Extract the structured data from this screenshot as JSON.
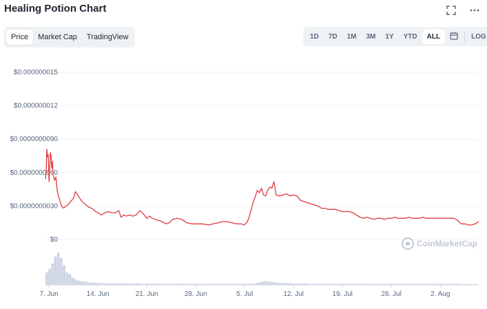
{
  "header": {
    "title": "Healing Potion Chart"
  },
  "icons": {
    "fullscreen": "fullscreen-icon",
    "more": "more-icon",
    "calendar": "calendar-icon"
  },
  "tabs": [
    {
      "label": "Price",
      "active": true
    },
    {
      "label": "Market Cap",
      "active": false
    },
    {
      "label": "TradingView",
      "active": false
    }
  ],
  "ranges": [
    {
      "label": "1D",
      "active": false
    },
    {
      "label": "7D",
      "active": false
    },
    {
      "label": "1M",
      "active": false
    },
    {
      "label": "3M",
      "active": false
    },
    {
      "label": "1Y",
      "active": false
    },
    {
      "label": "YTD",
      "active": false
    },
    {
      "label": "ALL",
      "active": true
    }
  ],
  "log_label": "LOG",
  "watermark": "CoinMarketCap",
  "colors": {
    "line": "#e03a3e",
    "volume": "#cfd6e4",
    "grid": "#eff2f5"
  },
  "chart_data": {
    "type": "line",
    "ytick_labels": [
      "$0",
      "$0.0000000030",
      "$0.0000000060",
      "$0.0000000090",
      "$0.000000012",
      "$0.000000015"
    ],
    "yticks": [
      0,
      3e-09,
      6e-09,
      9e-09,
      1.2e-08,
      1.5e-08
    ],
    "ylim": [
      0,
      1.5e-08
    ],
    "xtick_labels": [
      "7. Jun",
      "14. Jun",
      "21. Jun",
      "28. Jun",
      "5. Jul",
      "12. Jul",
      "19. Jul",
      "26. Jul",
      "2. Aug"
    ],
    "xticks": [
      7.5,
      14.5,
      21.5,
      28.5,
      35.5,
      42.5,
      49.5,
      56.5,
      63.5
    ],
    "xlim": [
      7,
      69
    ],
    "grid": true,
    "series": [
      {
        "x": [
          7.0,
          7.1,
          7.2,
          7.3,
          7.4,
          7.5,
          7.6,
          7.7,
          7.8,
          7.9,
          8.0,
          8.1,
          8.3,
          8.5,
          8.7,
          9.0,
          9.3,
          9.6,
          9.9,
          10.2,
          10.6,
          11.0,
          11.3,
          11.6,
          12.0,
          12.4,
          12.8,
          13.2,
          13.6,
          14.0,
          14.5,
          15.0,
          15.5,
          16.0,
          16.5,
          17.0,
          17.5,
          17.8,
          18.2,
          18.6,
          19.0,
          19.5,
          20.0,
          20.5,
          21.0,
          21.5,
          21.9,
          22.3,
          22.7,
          23.2,
          23.7,
          24.2,
          24.7,
          25.2,
          25.8,
          26.5,
          27.2,
          28.0,
          28.7,
          29.5,
          30.3,
          31.0,
          31.7,
          32.3,
          33.0,
          33.7,
          34.3,
          35.0,
          35.4,
          35.8,
          36.1,
          36.4,
          36.7,
          37.0,
          37.3,
          37.6,
          37.9,
          38.2,
          38.5,
          38.8,
          39.1,
          39.4,
          39.7,
          40.0,
          40.5,
          41.0,
          41.5,
          42.0,
          42.5,
          43.0,
          43.5,
          44.0,
          44.5,
          45.0,
          45.5,
          46.0,
          46.5,
          47.0,
          47.5,
          48.0,
          48.5,
          49.0,
          49.5,
          50.0,
          50.5,
          51.0,
          51.5,
          52.0,
          52.5,
          53.0,
          53.5,
          54.0,
          54.5,
          55.0,
          55.5,
          56.0,
          56.5,
          57.0,
          57.5,
          58.0,
          58.5,
          59.0,
          59.5,
          60.0,
          60.5,
          61.0,
          61.5,
          62.0,
          62.5,
          63.0,
          63.5,
          64.0,
          64.5,
          65.0,
          65.5,
          66.0,
          66.5,
          67.0,
          67.5,
          68.0,
          68.5,
          69.0
        ],
        "y": [
          5.4e-09,
          6.1e-09,
          8.1e-09,
          7.4e-09,
          7.6e-09,
          5.2e-09,
          6.3e-09,
          7.8e-09,
          7.5e-09,
          6.4e-09,
          7e-09,
          5.8e-09,
          5.3e-09,
          5.6e-09,
          4.3e-09,
          3.6e-09,
          3e-09,
          2.8e-09,
          3e-09,
          3.1e-09,
          3.4e-09,
          3.7e-09,
          4.3e-09,
          4e-09,
          3.6e-09,
          3.3e-09,
          3.1e-09,
          2.9e-09,
          2.8e-09,
          2.6e-09,
          2.4e-09,
          2.2e-09,
          2.4e-09,
          2.5e-09,
          2.4e-09,
          2.4e-09,
          2.6e-09,
          2e-09,
          2.2e-09,
          2.1e-09,
          2.2e-09,
          2.1e-09,
          2.2e-09,
          2.6e-09,
          2.3e-09,
          1.9e-09,
          2.1e-09,
          1.9e-09,
          1.8e-09,
          1.7e-09,
          1.6e-09,
          1.4e-09,
          1.5e-09,
          1.8e-09,
          1.9e-09,
          1.8e-09,
          1.5e-09,
          1.4e-09,
          1.4e-09,
          1.4e-09,
          1.3e-09,
          1.4e-09,
          1.5e-09,
          1.6e-09,
          1.6e-09,
          1.5e-09,
          1.4e-09,
          1.4e-09,
          1.3e-09,
          1.5e-09,
          1.9e-09,
          2.6e-09,
          3.3e-09,
          3.8e-09,
          4.4e-09,
          4.2e-09,
          4.6e-09,
          4e-09,
          3.9e-09,
          4.4e-09,
          4.7e-09,
          4.6e-09,
          5.2e-09,
          4e-09,
          3.9e-09,
          4e-09,
          4.1e-09,
          3.9e-09,
          4e-09,
          3.9e-09,
          3.5e-09,
          3.4e-09,
          3.3e-09,
          3.2e-09,
          3.1e-09,
          3e-09,
          2.8e-09,
          2.8e-09,
          2.7e-09,
          2.7e-09,
          2.7e-09,
          2.6e-09,
          2.5e-09,
          2.5e-09,
          2.5e-09,
          2.4e-09,
          2.2e-09,
          2e-09,
          1.9e-09,
          2e-09,
          1.9e-09,
          1.8e-09,
          1.9e-09,
          1.9e-09,
          1.8e-09,
          1.9e-09,
          1.9e-09,
          2e-09,
          1.9e-09,
          1.9e-09,
          1.9e-09,
          2e-09,
          1.9e-09,
          1.9e-09,
          1.9e-09,
          2e-09,
          1.9e-09,
          1.9e-09,
          1.9e-09,
          1.9e-09,
          1.9e-09,
          1.9e-09,
          1.9e-09,
          1.9e-09,
          1.9e-09,
          1.7e-09,
          1.4e-09,
          1.4e-09,
          1.3e-09,
          1.3e-09,
          1.4e-09,
          1.6e-09
        ]
      }
    ],
    "volume": [
      0.35,
      0.45,
      0.6,
      0.8,
      0.9,
      0.75,
      0.55,
      0.35,
      0.3,
      0.2,
      0.15,
      0.12,
      0.1,
      0.1,
      0.08,
      0.07,
      0.06,
      0.06,
      0.05,
      0.05,
      0.04,
      0.05,
      0.04,
      0.05,
      0.04,
      0.04,
      0.05,
      0.04,
      0.04,
      0.04,
      0.03,
      0.04,
      0.04,
      0.03,
      0.03,
      0.04,
      0.03,
      0.03,
      0.04,
      0.03,
      0.03,
      0.03,
      0.03,
      0.03,
      0.03,
      0.03,
      0.03,
      0.03,
      0.03,
      0.03,
      0.03,
      0.03,
      0.03,
      0.03,
      0.03,
      0.03,
      0.03,
      0.03,
      0.03,
      0.03,
      0.03,
      0.03,
      0.03,
      0.03,
      0.03,
      0.03,
      0.03,
      0.03,
      0.03,
      0.03,
      0.03,
      0.03,
      0.04,
      0.06,
      0.08,
      0.1,
      0.11,
      0.09,
      0.08,
      0.07,
      0.06,
      0.06,
      0.05,
      0.05,
      0.05,
      0.04,
      0.04,
      0.04,
      0.04,
      0.04,
      0.04,
      0.03,
      0.03,
      0.03,
      0.03,
      0.03,
      0.03,
      0.03,
      0.03,
      0.03,
      0.03,
      0.03,
      0.03,
      0.03,
      0.03,
      0.03,
      0.03,
      0.03,
      0.03,
      0.03,
      0.03,
      0.03,
      0.03,
      0.03,
      0.03,
      0.03,
      0.03,
      0.03,
      0.03,
      0.03,
      0.03,
      0.03,
      0.03,
      0.03,
      0.03,
      0.03,
      0.03,
      0.03,
      0.03,
      0.03,
      0.03,
      0.03,
      0.03,
      0.03,
      0.03,
      0.03,
      0.03,
      0.03,
      0.03,
      0.03,
      0.03,
      0.03,
      0.03,
      0.03,
      0.02,
      0.02,
      0.02,
      0.02,
      0.02,
      0.02
    ]
  }
}
